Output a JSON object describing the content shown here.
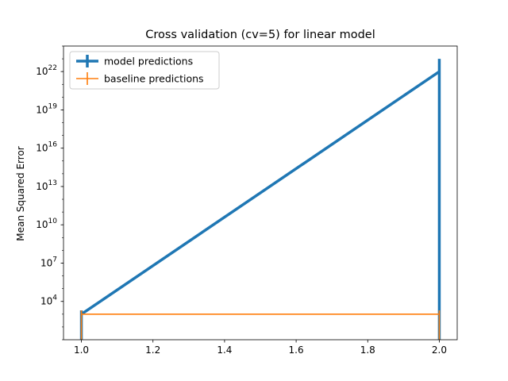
{
  "chart_data": {
    "type": "line",
    "title": "Cross validation (cv=5) for linear model",
    "xlabel": "",
    "ylabel": "Mean Squared Error",
    "xlim": [
      0.95,
      2.05
    ],
    "ylim": [
      10,
      1e+24
    ],
    "yscale": "log",
    "grid": false,
    "legend_position": "top-left",
    "x_ticks": [
      1.0,
      1.2,
      1.4,
      1.6,
      1.8,
      2.0
    ],
    "x_tick_labels": [
      "1.0",
      "1.2",
      "1.4",
      "1.6",
      "1.8",
      "2.0"
    ],
    "y_tick_exponents": [
      4,
      7,
      10,
      13,
      16,
      19,
      22
    ],
    "series": [
      {
        "name": "model predictions",
        "color": "#1f77b4",
        "x": [
          1.0,
          2.0
        ],
        "y": [
          1000,
          1e+22
        ],
        "yerr_low": [
          1,
          1
        ],
        "yerr_high": [
          2000,
          1e+23
        ]
      },
      {
        "name": "baseline predictions",
        "color": "#ff7f0e",
        "x": [
          1.0,
          2.0
        ],
        "y": [
          1000,
          1000
        ],
        "yerr_low": [
          1,
          1
        ],
        "yerr_high": [
          2000,
          2000
        ]
      }
    ]
  }
}
